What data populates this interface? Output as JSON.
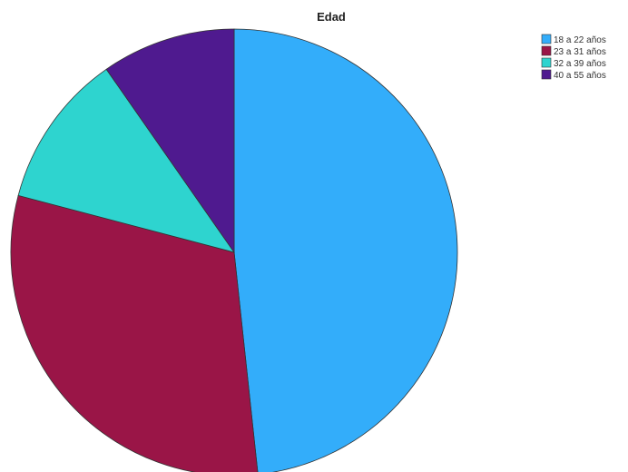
{
  "chart_data": {
    "type": "pie",
    "title": "Edad",
    "legend_position": "top-right",
    "categories": [
      "18 a 22 años",
      "23 a 31 años",
      "32 a 39 años",
      "40 a 55 años"
    ],
    "values": [
      48.3,
      30.8,
      11.2,
      9.7
    ],
    "colors": [
      "#33adfa",
      "#9a1547",
      "#2ed4cf",
      "#4f1a8f"
    ],
    "start_angle_deg": 0,
    "direction": "clockwise"
  }
}
